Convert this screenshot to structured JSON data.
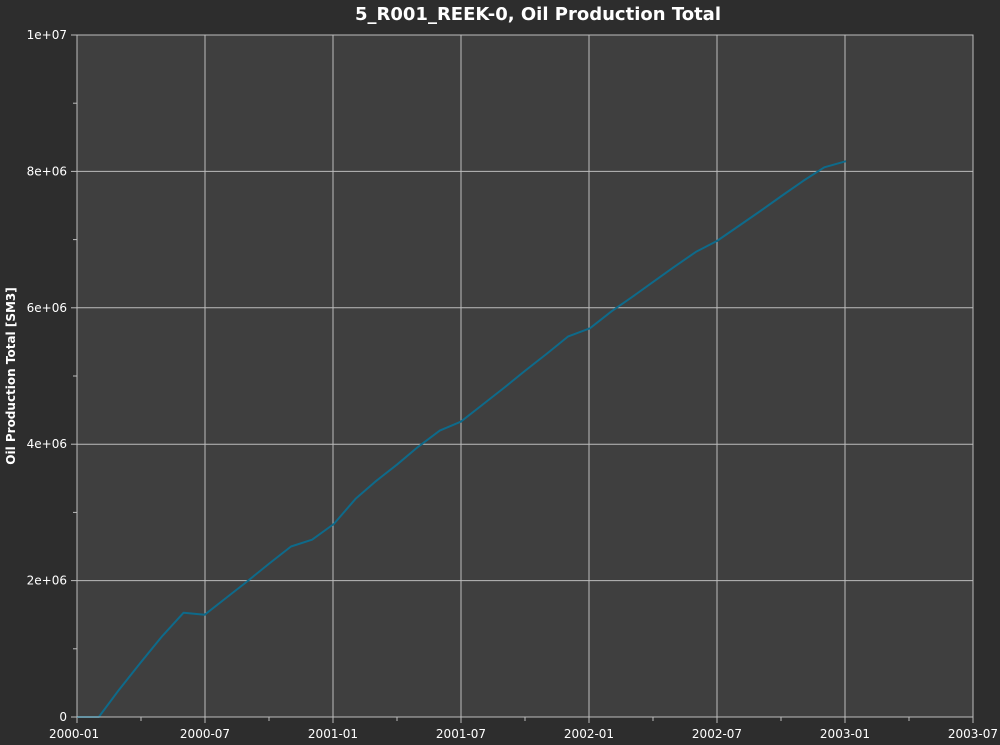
{
  "chart_data": {
    "type": "line",
    "title": "5_R001_REEK-0, Oil Production Total",
    "xlabel": "",
    "ylabel": "Oil Production Total [SM3]",
    "x_tick_labels": [
      "2000-01",
      "2000-07",
      "2001-01",
      "2001-07",
      "2002-01",
      "2002-07",
      "2003-01",
      "2003-07"
    ],
    "y_tick_labels": [
      "0",
      "2e+06",
      "4e+06",
      "6e+06",
      "8e+06",
      "1e+07"
    ],
    "x_range": [
      "2000-01-01",
      "2003-07-01"
    ],
    "ylim": [
      0,
      10000000
    ],
    "grid": true,
    "colors": {
      "background": "#2d2d2d",
      "plot_area": "#3f3f3f",
      "grid": "#bdbdbd",
      "line": "#0e6a8a"
    },
    "series": [
      {
        "x": [
          "2000-01-01",
          "2000-02-01",
          "2000-03-01",
          "2000-04-01",
          "2000-05-01",
          "2000-06-01",
          "2000-07-01",
          "2000-08-01",
          "2000-09-01",
          "2000-10-01",
          "2000-11-01",
          "2000-12-01",
          "2001-01-01",
          "2001-02-01",
          "2001-03-01",
          "2001-04-01",
          "2001-05-01",
          "2001-06-01",
          "2001-07-01",
          "2001-08-01",
          "2001-09-01",
          "2001-10-01",
          "2001-11-01",
          "2001-12-01",
          "2002-01-01",
          "2002-02-01",
          "2002-03-01",
          "2002-04-01",
          "2002-05-01",
          "2002-06-01",
          "2002-07-01",
          "2002-08-01",
          "2002-09-01",
          "2002-10-01",
          "2002-11-01",
          "2002-12-01",
          "2003-01-01"
        ],
        "values": [
          0,
          0,
          400000,
          800000,
          1180000,
          1530000,
          1500000,
          1750000,
          2000000,
          2250000,
          2500000,
          2600000,
          2830000,
          3200000,
          3450000,
          3700000,
          3960000,
          4200000,
          4330000,
          4580000,
          4830000,
          5080000,
          5330000,
          5580000,
          5700000,
          5950000,
          6150000,
          6380000,
          6600000,
          6820000,
          6980000,
          7200000,
          7420000,
          7640000,
          7860000,
          8060000,
          8150000
        ]
      }
    ]
  }
}
